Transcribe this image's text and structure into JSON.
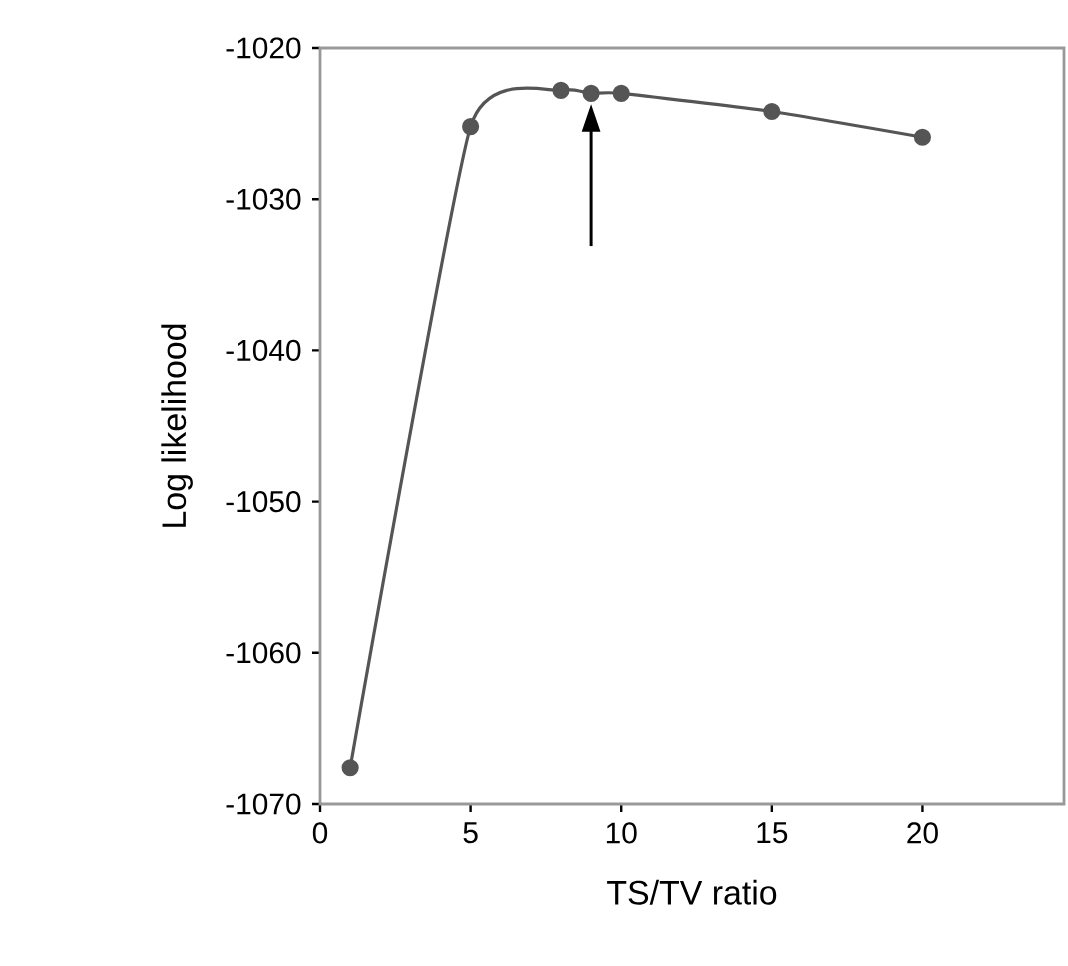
{
  "chart_data": {
    "type": "line",
    "xlabel": "TS/TV ratio",
    "ylabel": "Log likelihood",
    "x": [
      1,
      5,
      8,
      9,
      10,
      15,
      20
    ],
    "series": [
      {
        "color": "#555555",
        "values": [
          -1067.6,
          -1025.2,
          -1022.8,
          -1023.0,
          -1023.0,
          -1024.2,
          -1025.9
        ]
      }
    ],
    "xlim": [
      0,
      24.7
    ],
    "ylim": [
      -1070,
      -1020
    ],
    "xticks": [
      0,
      5,
      10,
      15,
      20
    ],
    "yticks": [
      -1070,
      -1060,
      -1050,
      -1040,
      -1030,
      -1020
    ],
    "marker": "circle",
    "line_style": "solid",
    "grid": false
  }
}
